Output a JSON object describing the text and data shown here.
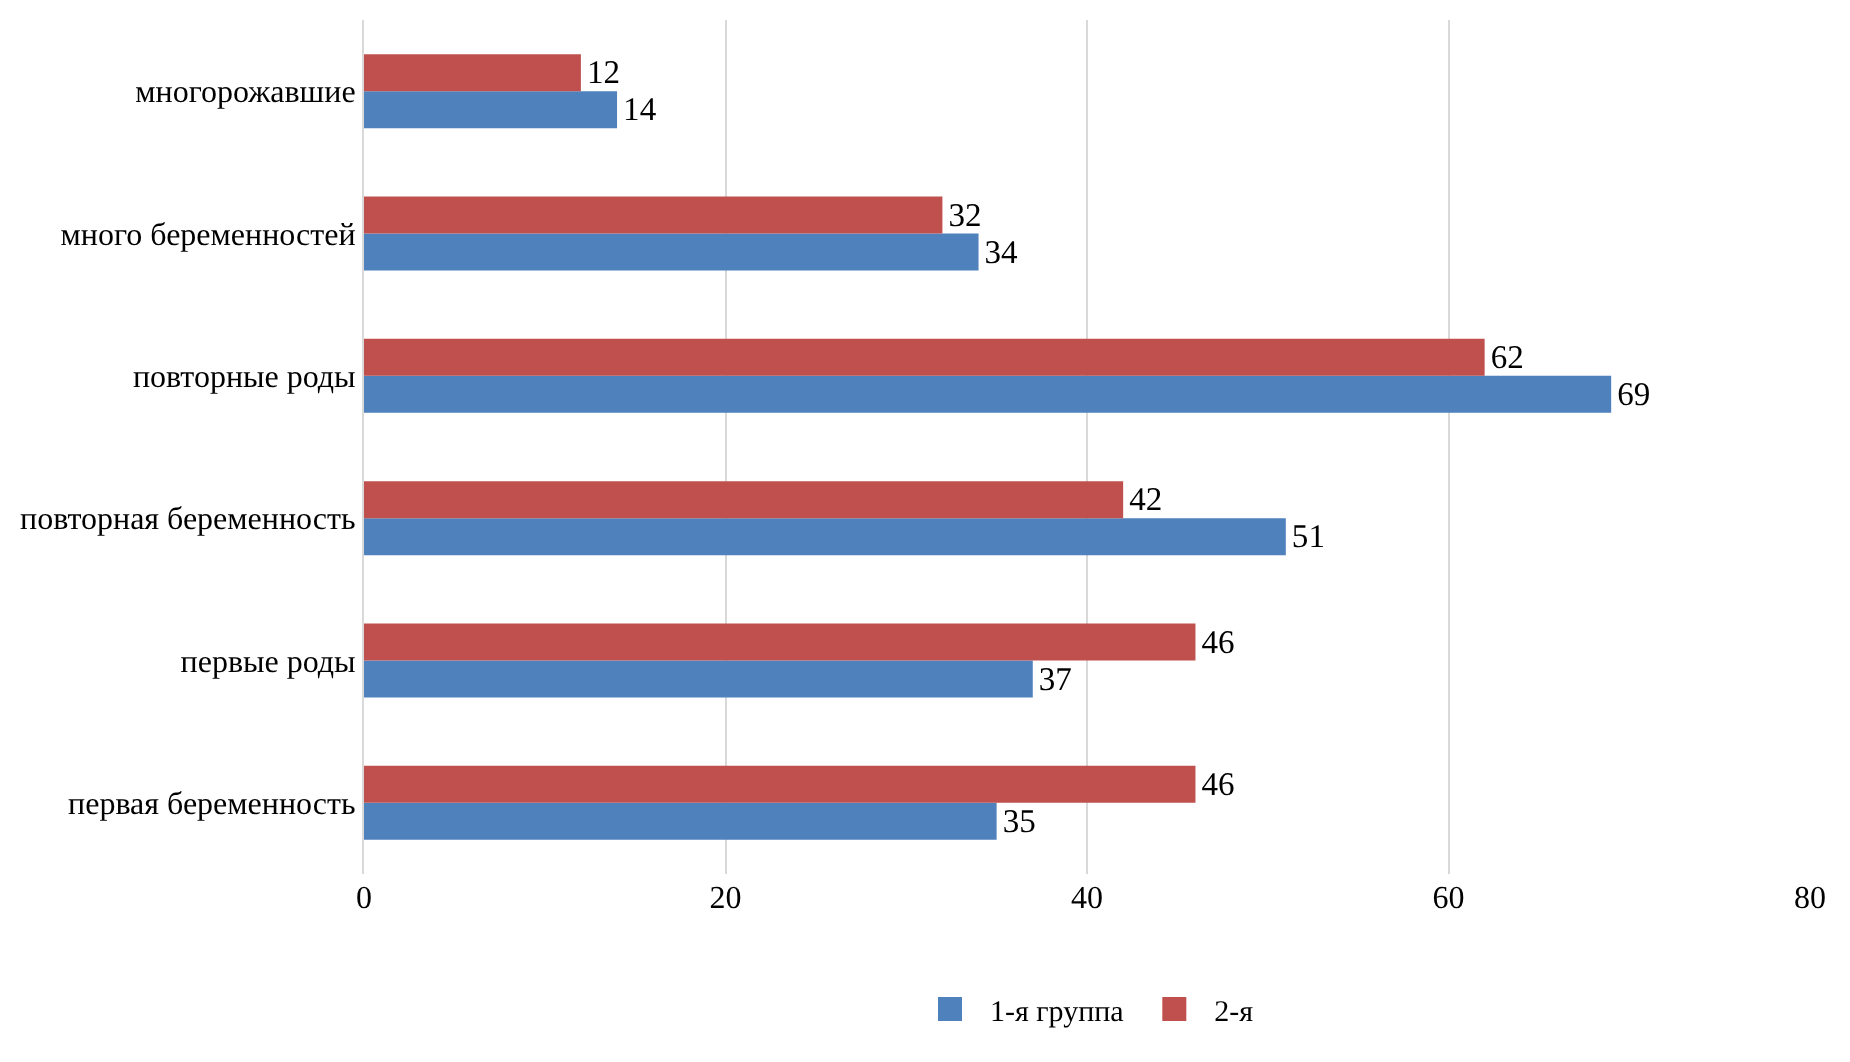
{
  "chart_data": {
    "type": "bar",
    "orientation": "horizontal",
    "categories": [
      "многорожавшие",
      "много беременностей",
      "повторные роды",
      "повторная беременность",
      "первые роды",
      "первая беременность"
    ],
    "series": [
      {
        "name": "1-я группа",
        "color": "#4f81bd",
        "values": [
          14,
          34,
          69,
          51,
          37,
          35
        ]
      },
      {
        "name": "2-я",
        "color": "#c0504d",
        "values": [
          12,
          32,
          62,
          42,
          46,
          46
        ]
      }
    ],
    "xlim": [
      0,
      80
    ],
    "xticks": [
      0,
      20,
      40,
      60,
      80
    ],
    "grid": "x",
    "legend": "bottom",
    "data_labels": true
  }
}
